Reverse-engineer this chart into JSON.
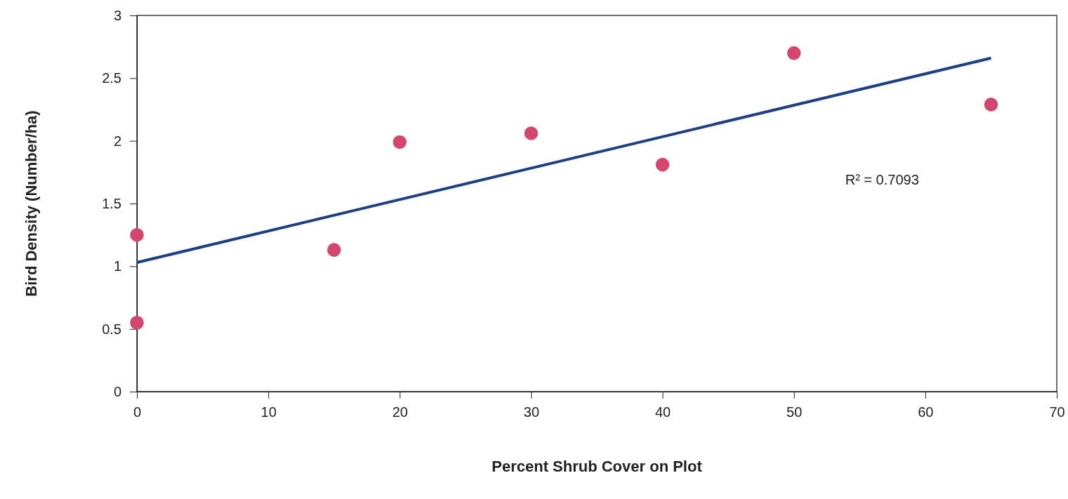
{
  "chart_data": {
    "type": "scatter",
    "xlabel": "Percent Shrub Cover on Plot",
    "ylabel": "Bird Density (Number/ha)",
    "xlim": [
      0,
      70
    ],
    "xticks": [
      0,
      10,
      20,
      30,
      40,
      50,
      60,
      70
    ],
    "ylim": [
      0,
      3
    ],
    "yticks": [
      0,
      0.5,
      1,
      1.5,
      2,
      2.5,
      3
    ],
    "grid": false,
    "series": [
      {
        "color": "#d4466b",
        "x": [
          0,
          0,
          15,
          20,
          30,
          40,
          50,
          65
        ],
        "values": [
          1.25,
          0.55,
          1.13,
          1.99,
          2.06,
          1.81,
          2.7,
          2.29
        ],
        "marker": "circle"
      },
      {
        "type": "line",
        "color": "#1f3f85",
        "x": [
          0,
          65
        ],
        "values": [
          1.03,
          2.66
        ],
        "line_style": "solid",
        "marker": "none"
      }
    ],
    "annotations": [
      "R² = 0.7093"
    ]
  }
}
